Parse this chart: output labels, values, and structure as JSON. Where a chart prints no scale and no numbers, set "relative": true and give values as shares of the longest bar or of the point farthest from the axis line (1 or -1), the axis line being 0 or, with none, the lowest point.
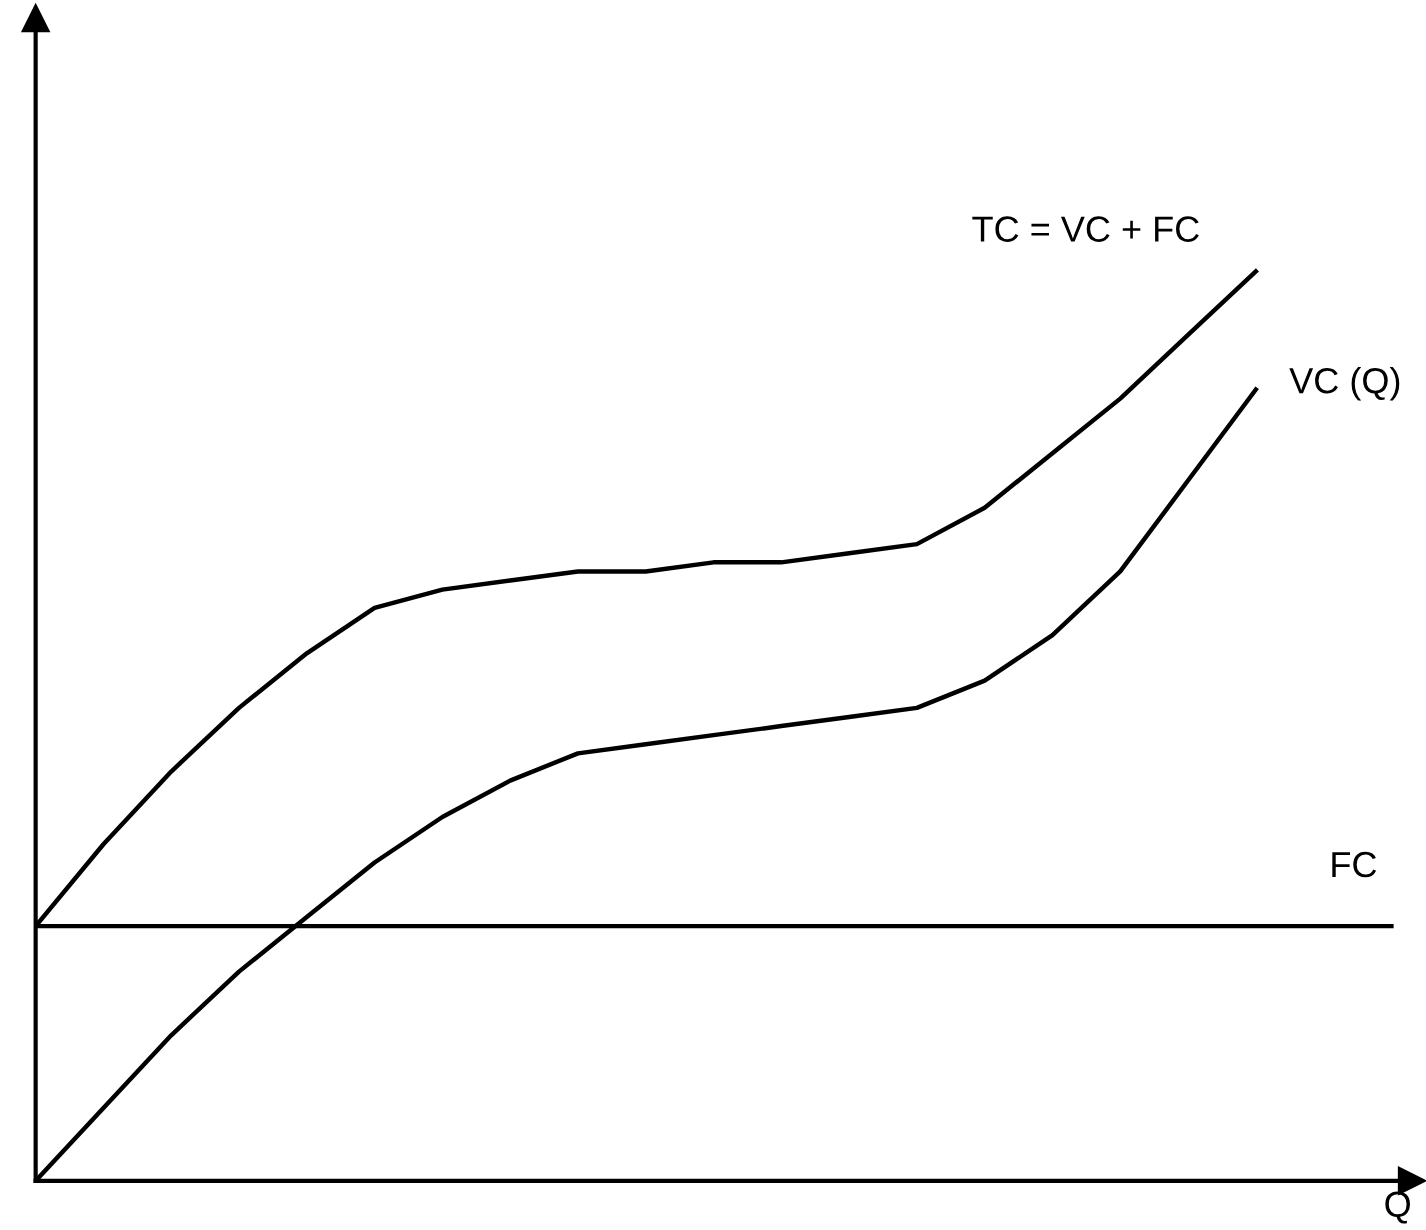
{
  "chart_data": {
    "type": "line",
    "relative": true,
    "xlabel": "Q",
    "legend": false,
    "grid": false,
    "categories": [
      null,
      null,
      null,
      null,
      null,
      null,
      null,
      null,
      null,
      null,
      null,
      null,
      null,
      null,
      null,
      null,
      null,
      null,
      null,
      null,
      null
    ],
    "series": [
      {
        "name": "TC = VC + FC",
        "color": "#000000",
        "values": [
          0.28,
          0.37,
          0.45,
          0.52,
          0.58,
          0.63,
          0.65,
          0.66,
          0.67,
          0.67,
          0.68,
          0.68,
          0.69,
          0.7,
          0.74,
          0.8,
          0.86,
          0.93,
          1.0,
          null,
          null
        ]
      },
      {
        "name": "VC (Q)",
        "color": "#000000",
        "values": [
          0,
          0.08,
          0.16,
          0.23,
          0.29,
          0.35,
          0.4,
          0.44,
          0.47,
          0.48,
          0.49,
          0.5,
          0.51,
          0.52,
          0.55,
          0.6,
          0.67,
          0.77,
          0.87,
          null,
          null
        ]
      },
      {
        "name": "FC",
        "color": "#000000",
        "values": [
          0.28,
          0.28,
          0.28,
          0.28,
          0.28,
          0.28,
          0.28,
          0.28,
          0.28,
          0.28,
          0.28,
          0.28,
          0.28,
          0.28,
          0.28,
          0.28,
          0.28,
          0.28,
          0.28,
          0.28,
          0.28
        ]
      }
    ]
  }
}
